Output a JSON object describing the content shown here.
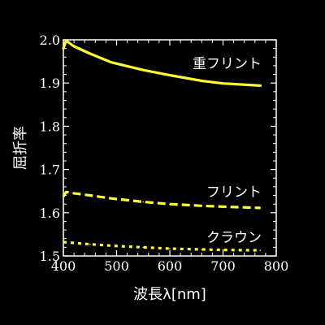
{
  "chart_data": {
    "type": "line",
    "xlabel": "波長λ[nm]",
    "ylabel": "屈折率",
    "xlim": [
      400,
      800
    ],
    "ylim": [
      1.5,
      2.0
    ],
    "x_ticks": [
      "400",
      "500",
      "600",
      "700",
      "800"
    ],
    "y_ticks": [
      "1.5",
      "1.6",
      "1.7",
      "1.8",
      "1.9",
      "2.0"
    ],
    "grid": false,
    "line_color": "#ffff33",
    "series": [
      {
        "name": "重フリント",
        "style": "solid",
        "x": [
          400,
          405,
          420,
          450,
          490,
          550,
          600,
          660,
          700,
          770
        ],
        "y": [
          1.98,
          1.998,
          1.985,
          1.968,
          1.948,
          1.93,
          1.918,
          1.905,
          1.899,
          1.894
        ]
      },
      {
        "name": "フリント",
        "style": "dashed",
        "x": [
          400,
          405,
          420,
          450,
          490,
          550,
          600,
          660,
          700,
          770
        ],
        "y": [
          1.637,
          1.648,
          1.645,
          1.64,
          1.633,
          1.625,
          1.62,
          1.616,
          1.614,
          1.611
        ]
      },
      {
        "name": "クラウン",
        "style": "dotted",
        "x": [
          400,
          450,
          500,
          550,
          600,
          660,
          700,
          770
        ],
        "y": [
          1.532,
          1.527,
          1.523,
          1.52,
          1.517,
          1.515,
          1.514,
          1.513
        ]
      }
    ]
  }
}
